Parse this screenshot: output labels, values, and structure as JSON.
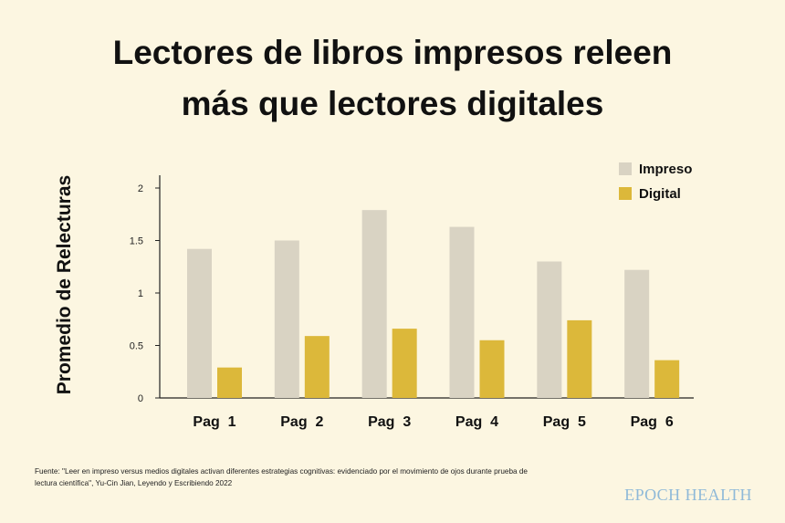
{
  "title_line1": "Lectores de libros impresos releen",
  "title_line2": "más que lectores digitales",
  "source_text": "Fuente: \"Leer en impreso versus medios digitales activan diferentes estrategias cognitivas: evidenciado por el movimiento de ojos durante prueba de lectura científica\", Yu-Cin Jian, Leyendo y Escribiendo 2022",
  "brand": "EPOCH HEALTH",
  "colors": {
    "background": "#fcf6e1",
    "impreso": "#d9d3c3",
    "digital": "#dcb83a",
    "axis": "#222222"
  },
  "chart_data": {
    "type": "bar",
    "title": "Lectores de libros impresos releen más que lectores digitales",
    "xlabel": "",
    "ylabel": "Promedio de Relecturas",
    "categories": [
      "Pag  1",
      "Pag  2",
      "Pag  3",
      "Pag  4",
      "Pag  5",
      "Pag  6"
    ],
    "series": [
      {
        "name": "Impreso",
        "values": [
          1.42,
          1.5,
          1.79,
          1.63,
          1.3,
          1.22
        ]
      },
      {
        "name": "Digital",
        "values": [
          0.29,
          0.59,
          0.66,
          0.55,
          0.74,
          0.36
        ]
      }
    ],
    "ylim": [
      0,
      2
    ],
    "yticks": [
      "0",
      "0.5",
      "1",
      "1.5",
      "2"
    ],
    "grid": false,
    "legend": "top-right"
  }
}
